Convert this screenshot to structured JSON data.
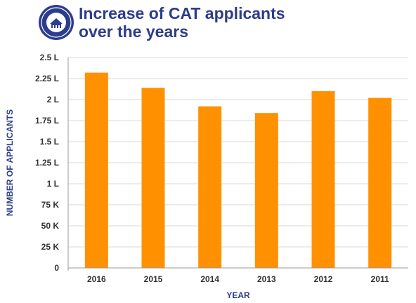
{
  "header": {
    "title_line1": "Increase of CAT applicants",
    "title_line2": "over the years",
    "logo_icon": "university-seal-icon"
  },
  "colors": {
    "bar": "#ff9100",
    "title": "#2d3c8c",
    "axis_title": "#2d3c8c",
    "grid": "#d9d9d9",
    "tick_text": "#333333"
  },
  "chart_data": {
    "type": "bar",
    "title": "Increase of CAT applicants over the years",
    "xlabel": "YEAR",
    "ylabel": "NUMBER OF APPLICANTS",
    "categories": [
      "2016",
      "2015",
      "2014",
      "2013",
      "2012",
      "2011"
    ],
    "values": [
      232000,
      214000,
      192000,
      184000,
      210000,
      202000
    ],
    "ylim": [
      0,
      250000
    ],
    "yticks": [
      0,
      25000,
      50000,
      75000,
      100000,
      125000,
      150000,
      175000,
      200000,
      225000,
      250000
    ],
    "ytick_labels": [
      "0",
      "25 K",
      "50 K",
      "75 K",
      "1 L",
      "1.25 L",
      "1.5 L",
      "1.75 L",
      "2 L",
      "2.25 L",
      "2.5 L"
    ],
    "grid": true,
    "legend": "none"
  }
}
